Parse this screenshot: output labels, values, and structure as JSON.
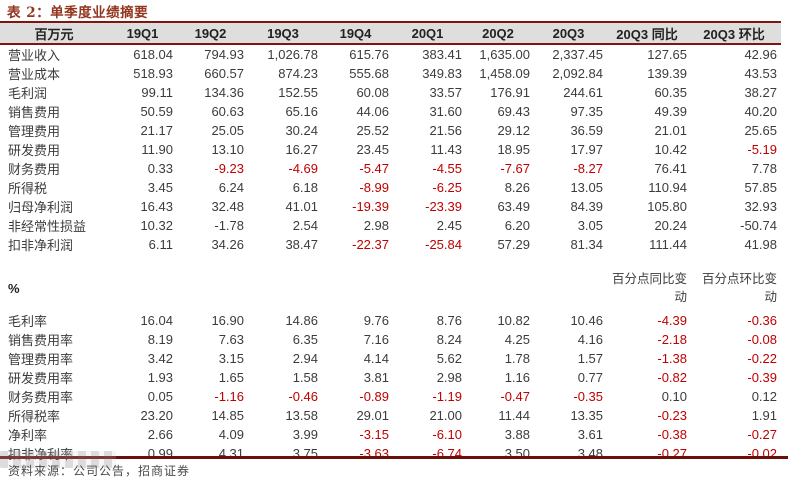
{
  "title": "表 2：单季度业绩摘要",
  "colors": {
    "accent_rule": "#7e1511",
    "title_red": "#93351f",
    "negative_red": "#c00000",
    "header_bg": "#dedede",
    "body_text": "#3c3c3c"
  },
  "table": {
    "unit_header": "百万元",
    "columns": [
      "19Q1",
      "19Q2",
      "19Q3",
      "19Q4",
      "20Q1",
      "20Q2",
      "20Q3",
      "20Q3 同比",
      "20Q3 环比"
    ],
    "rows_mn": [
      {
        "label": "营业收入",
        "values": [
          "618.04",
          "794.93",
          "1,026.78",
          "615.76",
          "383.41",
          "1,635.00",
          "2,337.45",
          "127.65",
          "42.96"
        ],
        "red": []
      },
      {
        "label": "营业成本",
        "values": [
          "518.93",
          "660.57",
          "874.23",
          "555.68",
          "349.83",
          "1,458.09",
          "2,092.84",
          "139.39",
          "43.53"
        ],
        "red": []
      },
      {
        "label": "毛利润",
        "values": [
          "99.11",
          "134.36",
          "152.55",
          "60.08",
          "33.57",
          "176.91",
          "244.61",
          "60.35",
          "38.27"
        ],
        "red": []
      },
      {
        "label": "销售费用",
        "values": [
          "50.59",
          "60.63",
          "65.16",
          "44.06",
          "31.60",
          "69.43",
          "97.35",
          "49.39",
          "40.20"
        ],
        "red": []
      },
      {
        "label": "管理费用",
        "values": [
          "21.17",
          "25.05",
          "30.24",
          "25.52",
          "21.56",
          "29.12",
          "36.59",
          "21.01",
          "25.65"
        ],
        "red": []
      },
      {
        "label": "研发费用",
        "values": [
          "11.90",
          "13.10",
          "16.27",
          "23.45",
          "11.43",
          "18.95",
          "17.97",
          "10.42",
          "-5.19"
        ],
        "red": [
          8
        ]
      },
      {
        "label": "财务费用",
        "values": [
          "0.33",
          "-9.23",
          "-4.69",
          "-5.47",
          "-4.55",
          "-7.67",
          "-8.27",
          "76.41",
          "7.78"
        ],
        "red": [
          1,
          2,
          3,
          4,
          5,
          6
        ]
      },
      {
        "label": "所得税",
        "values": [
          "3.45",
          "6.24",
          "6.18",
          "-8.99",
          "-6.25",
          "8.26",
          "13.05",
          "110.94",
          "57.85"
        ],
        "red": [
          3,
          4
        ]
      },
      {
        "label": "归母净利润",
        "values": [
          "16.43",
          "32.48",
          "41.01",
          "-19.39",
          "-23.39",
          "63.49",
          "84.39",
          "105.80",
          "32.93"
        ],
        "red": [
          3,
          4
        ]
      },
      {
        "label": "非经常性损益",
        "values": [
          "10.32",
          "-1.78",
          "2.54",
          "2.98",
          "2.45",
          "6.20",
          "3.05",
          "20.24",
          "-50.74"
        ],
        "red": []
      },
      {
        "label": "扣非净利润",
        "values": [
          "6.11",
          "34.26",
          "38.47",
          "-22.37",
          "-25.84",
          "57.29",
          "81.34",
          "111.44",
          "41.98"
        ],
        "red": [
          3,
          4
        ]
      }
    ],
    "percent_section": {
      "label": "%",
      "yoy_header": "百分点同比变动",
      "qoq_header": "百分点环比变动"
    },
    "rows_pct": [
      {
        "label": "毛利率",
        "values": [
          "16.04",
          "16.90",
          "14.86",
          "9.76",
          "8.76",
          "10.82",
          "10.46",
          "-4.39",
          "-0.36"
        ],
        "red": [
          7,
          8
        ]
      },
      {
        "label": "销售费用率",
        "values": [
          "8.19",
          "7.63",
          "6.35",
          "7.16",
          "8.24",
          "4.25",
          "4.16",
          "-2.18",
          "-0.08"
        ],
        "red": [
          7,
          8
        ]
      },
      {
        "label": "管理费用率",
        "values": [
          "3.42",
          "3.15",
          "2.94",
          "4.14",
          "5.62",
          "1.78",
          "1.57",
          "-1.38",
          "-0.22"
        ],
        "red": [
          7,
          8
        ]
      },
      {
        "label": "研发费用率",
        "values": [
          "1.93",
          "1.65",
          "1.58",
          "3.81",
          "2.98",
          "1.16",
          "0.77",
          "-0.82",
          "-0.39"
        ],
        "red": [
          7,
          8
        ]
      },
      {
        "label": "财务费用率",
        "values": [
          "0.05",
          "-1.16",
          "-0.46",
          "-0.89",
          "-1.19",
          "-0.47",
          "-0.35",
          "0.10",
          "0.12"
        ],
        "red": [
          1,
          2,
          3,
          4,
          5,
          6
        ]
      },
      {
        "label": "所得税率",
        "values": [
          "23.20",
          "14.85",
          "13.58",
          "29.01",
          "21.00",
          "11.44",
          "13.35",
          "-0.23",
          "1.91"
        ],
        "red": [
          7
        ]
      },
      {
        "label": "净利率",
        "values": [
          "2.66",
          "4.09",
          "3.99",
          "-3.15",
          "-6.10",
          "3.88",
          "3.61",
          "-0.38",
          "-0.27"
        ],
        "red": [
          3,
          4,
          7,
          8
        ]
      },
      {
        "label": "扣非净利率",
        "values": [
          "0.99",
          "4.31",
          "3.75",
          "-3.63",
          "-6.74",
          "3.50",
          "3.48",
          "-0.27",
          "-0.02"
        ],
        "red": [
          3,
          4,
          7,
          8
        ]
      }
    ]
  },
  "footer": {
    "source": "资料来源：公司公告，招商证券"
  }
}
